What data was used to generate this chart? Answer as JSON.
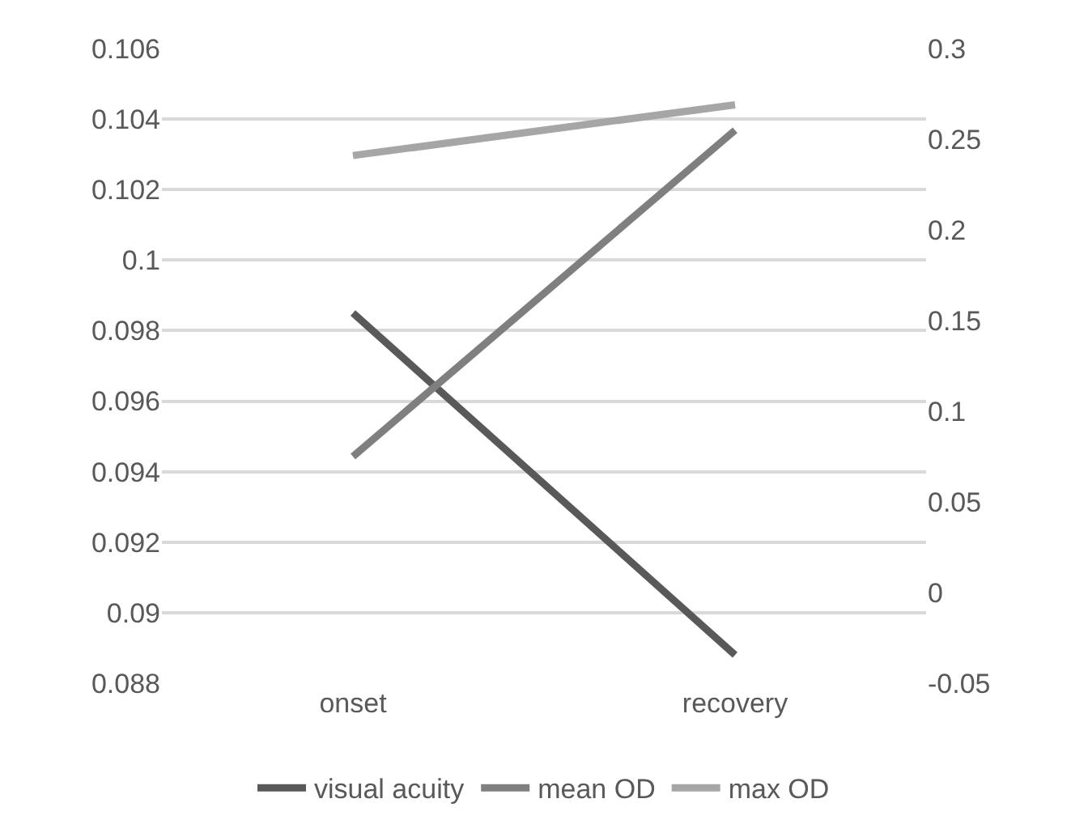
{
  "chart_data": {
    "type": "line",
    "categories": [
      "onset",
      "recovery"
    ],
    "series": [
      {
        "name": "visual acuity",
        "color": "#595959",
        "values": [
          0.0985,
          0.0888
        ]
      },
      {
        "name": "mean OD",
        "color": "#7f7f7f",
        "values": [
          0.075,
          0.255
        ],
        "axis": "y2"
      },
      {
        "name": "max OD",
        "color": "#a6a6a6",
        "values": [
          0.241,
          0.269
        ],
        "axis": "y2"
      }
    ],
    "ylim": [
      0.088,
      0.106
    ],
    "yticks": [
      {
        "value": 0.088,
        "label": "0.088"
      },
      {
        "value": 0.09,
        "label": "0.09"
      },
      {
        "value": 0.092,
        "label": "0.092"
      },
      {
        "value": 0.094,
        "label": "0.094"
      },
      {
        "value": 0.096,
        "label": "0.096"
      },
      {
        "value": 0.098,
        "label": "0.098"
      },
      {
        "value": 0.1,
        "label": "0.1"
      },
      {
        "value": 0.102,
        "label": "0.102"
      },
      {
        "value": 0.104,
        "label": "0.104"
      },
      {
        "value": 0.106,
        "label": "0.106"
      }
    ],
    "y2lim": [
      -0.05,
      0.3
    ],
    "y2ticks": [
      -0.05,
      0,
      0.05,
      0.1,
      0.15,
      0.2,
      0.25,
      0.3
    ],
    "grid": "y",
    "legend": "bottom",
    "marker": "none",
    "line_style": "solid"
  }
}
